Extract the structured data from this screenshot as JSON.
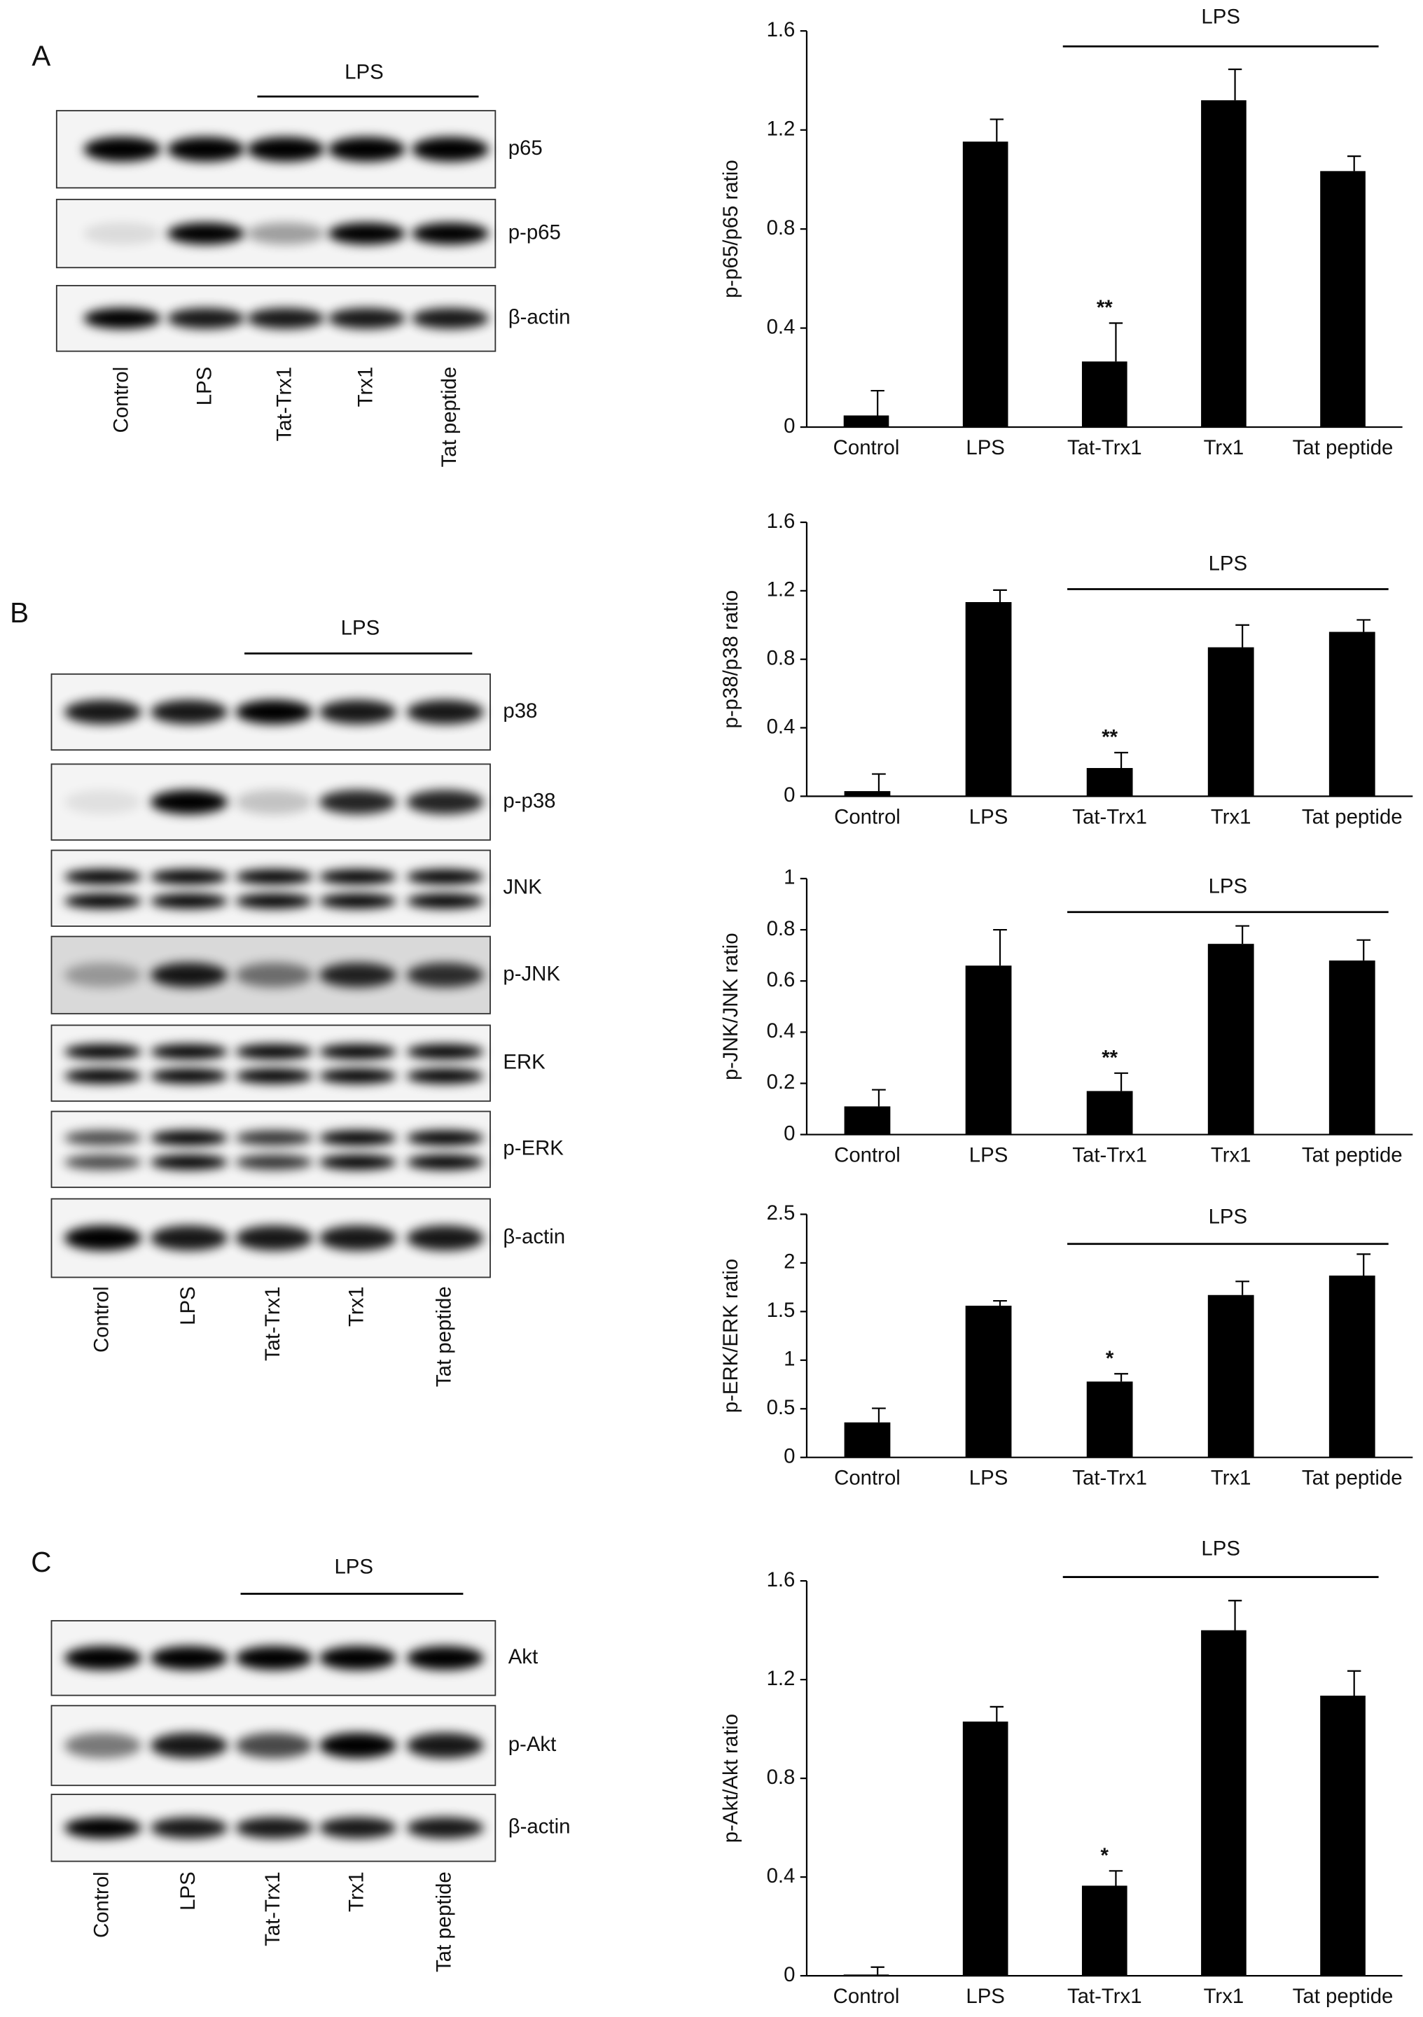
{
  "panel_labels": [
    "A",
    "B",
    "C"
  ],
  "blots": [
    {
      "treatment": "LPS",
      "rows": [
        "p65",
        "p-p65",
        "β-actin"
      ],
      "lanes": [
        "Control",
        "LPS",
        "Tat-Trx1",
        "Trx1",
        "Tat peptide"
      ]
    },
    {
      "treatment": "LPS",
      "rows": [
        "p38",
        "p-p38",
        "JNK",
        "p-JNK",
        "ERK",
        "p-ERK",
        "β-actin"
      ],
      "lanes": [
        "Control",
        "LPS",
        "Tat-Trx1",
        "Trx1",
        "Tat peptide"
      ]
    },
    {
      "treatment": "LPS",
      "rows": [
        "Akt",
        "p-Akt",
        "β-actin"
      ],
      "lanes": [
        "Control",
        "LPS",
        "Tat-Trx1",
        "Trx1",
        "Tat peptide"
      ]
    }
  ],
  "chart_data": [
    {
      "type": "bar",
      "y_label": "p-p65/p65 ratio",
      "bracket_label": "LPS",
      "color": "#000000",
      "categories": [
        "Control",
        "LPS",
        "Tat-Trx1",
        "Trx1",
        "Tat peptide"
      ],
      "values": [
        0.047,
        1.153,
        0.265,
        1.32,
        1.034
      ],
      "errors": [
        0.1,
        0.09,
        0.155,
        0.125,
        0.06
      ],
      "significance": [
        null,
        null,
        "**",
        null,
        null
      ],
      "ylim": [
        0,
        1.6
      ],
      "yticks": [
        0,
        0.4,
        0.8,
        1.2,
        1.6
      ]
    },
    {
      "type": "bar",
      "y_label": "p-p38/p38 ratio",
      "bracket_label": "LPS",
      "color": "#000000",
      "categories": [
        "Control",
        "LPS",
        "Tat-Trx1",
        "Trx1",
        "Tat peptide"
      ],
      "values": [
        0.03,
        1.134,
        0.165,
        0.87,
        0.96
      ],
      "errors": [
        0.1,
        0.07,
        0.09,
        0.13,
        0.07
      ],
      "significance": [
        null,
        null,
        "**",
        null,
        null
      ],
      "ylim": [
        0,
        1.6
      ],
      "yticks": [
        0,
        0.4,
        0.8,
        1.2,
        1.6
      ]
    },
    {
      "type": "bar",
      "y_label": "p-JNK/JNK ratio",
      "bracket_label": "LPS",
      "color": "#000000",
      "categories": [
        "Control",
        "LPS",
        "Tat-Trx1",
        "Trx1",
        "Tat peptide"
      ],
      "values": [
        0.11,
        0.66,
        0.17,
        0.745,
        0.68
      ],
      "errors": [
        0.065,
        0.14,
        0.07,
        0.07,
        0.08
      ],
      "significance": [
        null,
        null,
        "**",
        null,
        null
      ],
      "ylim": [
        0,
        1
      ],
      "yticks": [
        0,
        0.2,
        0.4,
        0.6,
        0.8,
        1
      ]
    },
    {
      "type": "bar",
      "y_label": "p-ERK/ERK ratio",
      "bracket_label": "LPS",
      "color": "#000000",
      "categories": [
        "Control",
        "LPS",
        "Tat-Trx1",
        "Trx1",
        "Tat peptide"
      ],
      "values": [
        0.36,
        1.56,
        0.78,
        1.67,
        1.87
      ],
      "errors": [
        0.145,
        0.05,
        0.08,
        0.14,
        0.22
      ],
      "significance": [
        null,
        null,
        "*",
        null,
        null
      ],
      "ylim": [
        0,
        2.5
      ],
      "yticks": [
        0,
        0.5,
        1,
        1.5,
        2,
        2.5
      ]
    },
    {
      "type": "bar",
      "y_label": "p-Akt/Akt ratio",
      "bracket_label": "LPS",
      "color": "#000000",
      "categories": [
        "Control",
        "LPS",
        "Tat-Trx1",
        "Trx1",
        "Tat peptide"
      ],
      "values": [
        0.005,
        1.03,
        0.365,
        1.4,
        1.135
      ],
      "errors": [
        0.03,
        0.06,
        0.06,
        0.12,
        0.1
      ],
      "significance": [
        null,
        null,
        "*",
        null,
        null
      ],
      "ylim": [
        0,
        1.6
      ],
      "yticks": [
        0,
        0.4,
        0.8,
        1.2,
        1.6
      ]
    }
  ]
}
